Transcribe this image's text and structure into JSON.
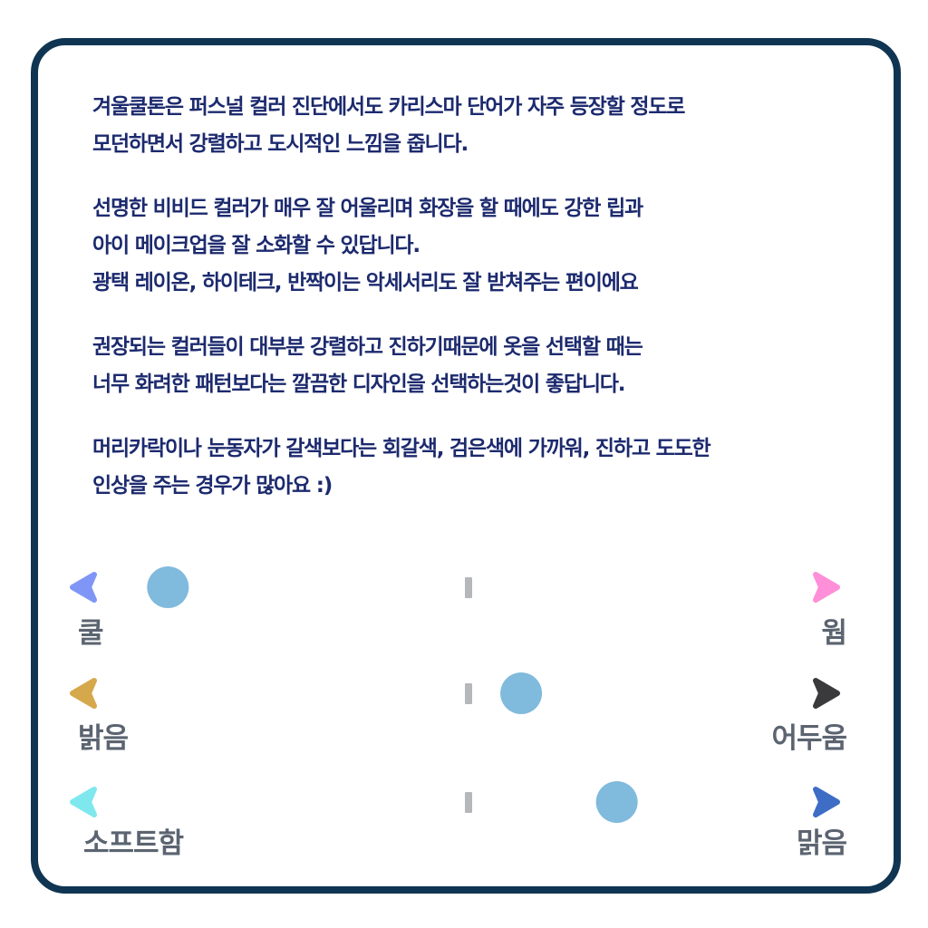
{
  "paragraphs": [
    {
      "lines": [
        "겨울쿨톤은 퍼스널 컬러 진단에서도 카리스마 단어가 자주 등장할 정도로",
        "모던하면서 강렬하고 도시적인 느낌을 줍니다."
      ]
    },
    {
      "lines": [
        "선명한 비비드 컬러가 매우 잘 어울리며 화장을 할 때에도 강한 립과",
        "아이 메이크업을 잘 소화할 수 있답니다.",
        "광택 레이온, 하이테크, 반짝이는 악세서리도 잘 받쳐주는 편이에요"
      ]
    },
    {
      "lines": [
        "권장되는 컬러들이 대부분 강렬하고 진하기때문에 옷을 선택할 때는",
        "너무 화려한 패턴보다는 깔끔한 디자인을 선택하는것이 좋답니다."
      ]
    },
    {
      "lines": [
        "머리카락이나 눈동자가 갈색보다는 회갈색, 검은색에 가까워, 진하고 도도한",
        "인상을 주는 경우가 많아요 :)"
      ]
    }
  ],
  "scales": [
    {
      "left_label": "쿨",
      "right_label": "웜",
      "value": 0.11,
      "gradient": [
        "#7f96f7",
        "#b89bf0",
        "#ff8fd8"
      ]
    },
    {
      "left_label": "밝음",
      "right_label": "어두움",
      "value": 0.59,
      "gradient": [
        "#d5a84c",
        "#8a7a50",
        "#3a3a3c"
      ]
    },
    {
      "left_label": "소프트함",
      "right_label": "맑음",
      "value": 0.72,
      "gradient": [
        "#7fe8ee",
        "#5aa8d8",
        "#3e6dc6"
      ]
    }
  ],
  "colors": {
    "border": "#0f3552",
    "text": "#1c2a6e",
    "label": "#5b6470",
    "marker": "#6aaed6",
    "center_tick": "#b5b7ba"
  }
}
